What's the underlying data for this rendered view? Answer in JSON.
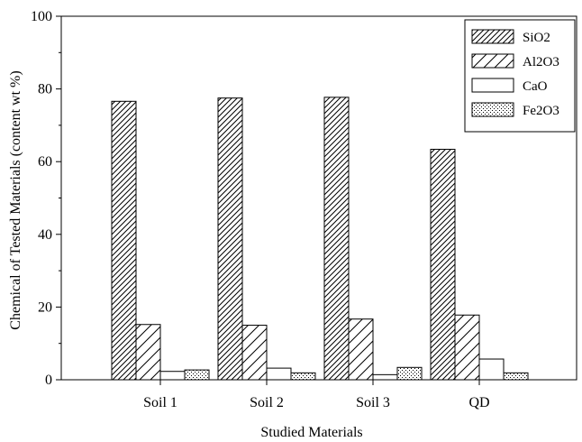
{
  "chart_data": {
    "type": "bar",
    "title": "",
    "xlabel": "Studied Materials",
    "ylabel": "Chemical of Tested Materials (content wt %)",
    "ylim": [
      0,
      100
    ],
    "yticks": [
      0,
      20,
      40,
      60,
      80,
      100
    ],
    "categories": [
      "Soil 1",
      "Soil 2",
      "Soil 3",
      "QD"
    ],
    "series": [
      {
        "name": "SiO2",
        "pattern": "dense-hatch",
        "values": [
          76.6,
          77.5,
          77.7,
          63.4
        ]
      },
      {
        "name": "Al2O3",
        "pattern": "wide-hatch",
        "values": [
          15.2,
          15.0,
          16.7,
          17.8
        ]
      },
      {
        "name": "CaO",
        "pattern": "blank",
        "values": [
          2.3,
          3.2,
          1.4,
          5.7
        ]
      },
      {
        "name": "Fe2O3",
        "pattern": "dots",
        "values": [
          2.7,
          1.9,
          3.4,
          1.9
        ]
      }
    ],
    "legend_position": "top-right",
    "grid": false,
    "colors": {
      "stroke": "#000000",
      "fill": "#ffffff"
    }
  }
}
